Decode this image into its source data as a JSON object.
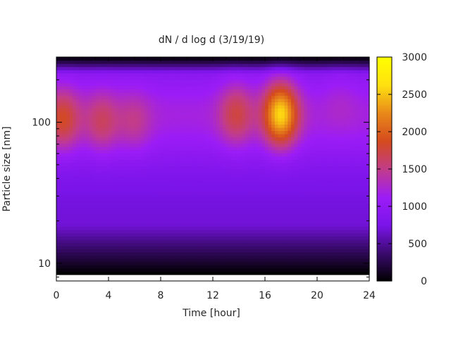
{
  "chart_data": {
    "type": "heatmap",
    "title": "dN / d log d (3/19/19)",
    "xlabel": "Time [hour]",
    "ylabel": "Particle size [nm]",
    "xlim": [
      0,
      24
    ],
    "ylim": [
      7.5,
      290
    ],
    "y_scale": "log",
    "x_ticks": [
      "0",
      "4",
      "8",
      "12",
      "16",
      "20",
      "24"
    ],
    "y_ticks": [
      "10",
      "100"
    ],
    "colorbar": {
      "range": [
        0,
        3000
      ],
      "ticks": [
        "0",
        "500",
        "1000",
        "1500",
        "2000",
        "2500",
        "3000"
      ],
      "palette": [
        "#000000",
        "#3a0a6e",
        "#7a14e8",
        "#9c1cf6",
        "#c23c8a",
        "#d44a1e",
        "#e8881a",
        "#ffe010",
        "#ffff00"
      ]
    },
    "grid": false,
    "size_range_nm": [
      8.5,
      290
    ],
    "features": [
      {
        "time_h": 0.5,
        "size_nm": 105,
        "peak": 1850
      },
      {
        "time_h": 3.5,
        "size_nm": 100,
        "peak": 1650
      },
      {
        "time_h": 6.0,
        "size_nm": 100,
        "peak": 1500
      },
      {
        "time_h": 13.8,
        "size_nm": 115,
        "peak": 1750
      },
      {
        "time_h": 17.2,
        "size_nm": 115,
        "peak": 2600
      },
      {
        "time_h": 21.8,
        "size_nm": 150,
        "peak": 1300
      }
    ]
  }
}
